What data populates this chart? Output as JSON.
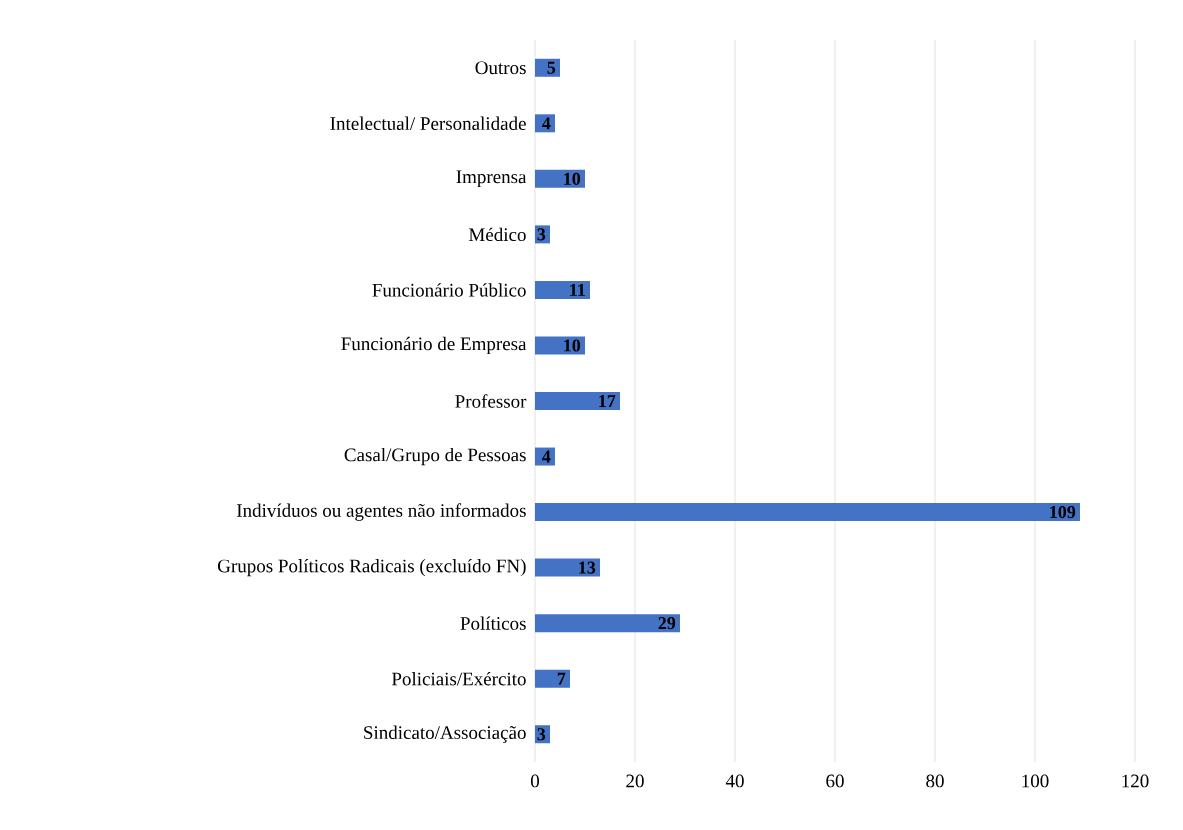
{
  "chart_data": {
    "type": "bar",
    "orientation": "horizontal",
    "categories": [
      "Outros",
      "Intelectual/ Personalidade",
      "Imprensa",
      "Médico",
      "Funcionário Público",
      "Funcionário de Empresa",
      "Professor",
      "Casal/Grupo de Pessoas",
      "Indivíduos ou agentes não informados",
      "Grupos Políticos Radicais (excluído FN)",
      "Políticos",
      "Policiais/Exército",
      "Sindicato/Associação"
    ],
    "values": [
      5,
      4,
      10,
      3,
      11,
      10,
      17,
      4,
      109,
      13,
      29,
      7,
      3
    ],
    "color": "#4472c4",
    "xlim": [
      0,
      120
    ],
    "xticks": [
      0,
      20,
      40,
      60,
      80,
      100,
      120
    ],
    "grid": "x",
    "data_labels": true
  }
}
